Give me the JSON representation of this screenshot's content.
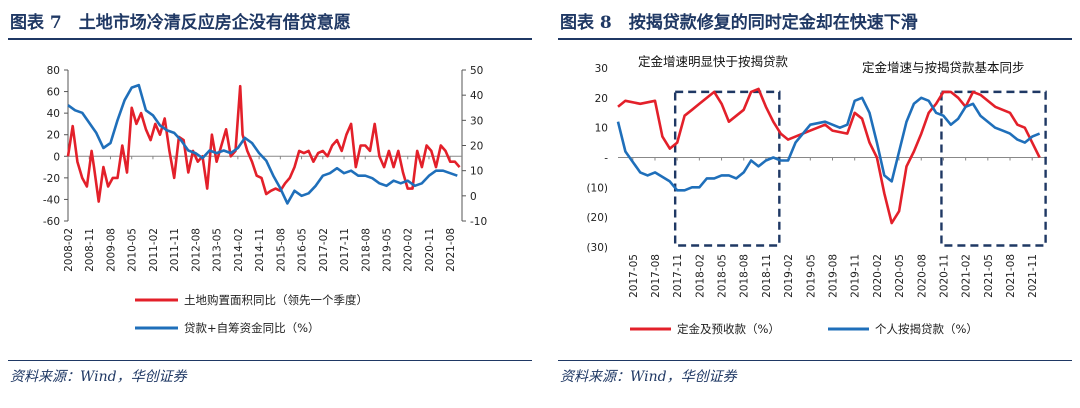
{
  "chart_data": [
    {
      "type": "line",
      "title": "图表 7　土地市场冷清反应房企没有借贷意愿",
      "source": "资料来源：Wind，华创证券",
      "x_tick_labels": [
        "2008-02",
        "2008-11",
        "2009-08",
        "2010-05",
        "2011-02",
        "2011-11",
        "2012-08",
        "2013-05",
        "2014-02",
        "2014-11",
        "2015-08",
        "2016-05",
        "2017-02",
        "2017-11",
        "2018-08",
        "2019-05",
        "2020-02",
        "2020-11",
        "2021-08"
      ],
      "x_start": "2008-02",
      "ylim_left": [
        -60,
        80
      ],
      "yticks_left": [
        -60,
        -40,
        -20,
        0,
        20,
        40,
        60,
        80
      ],
      "ylim_right": [
        -10,
        50
      ],
      "yticks_right": [
        -10,
        0,
        10,
        20,
        30,
        40,
        50
      ],
      "series": [
        {
          "name": "土地购置面积同比（领先一个季度）",
          "axis": "left",
          "color": "#e3202a",
          "x": [
            "2008-02",
            "2008-04",
            "2008-06",
            "2008-08",
            "2008-10",
            "2008-12",
            "2009-01",
            "2009-03",
            "2009-05",
            "2009-07",
            "2009-09",
            "2009-11",
            "2010-01",
            "2010-03",
            "2010-05",
            "2010-07",
            "2010-09",
            "2010-11",
            "2011-01",
            "2011-03",
            "2011-05",
            "2011-07",
            "2011-09",
            "2011-11",
            "2012-01",
            "2012-03",
            "2012-05",
            "2012-07",
            "2012-09",
            "2012-11",
            "2013-01",
            "2013-03",
            "2013-05",
            "2013-07",
            "2013-09",
            "2013-11",
            "2014-01",
            "2014-03",
            "2014-04",
            "2014-06",
            "2014-08",
            "2014-10",
            "2014-12",
            "2015-02",
            "2015-04",
            "2015-06",
            "2015-08",
            "2015-10",
            "2015-12",
            "2016-02",
            "2016-04",
            "2016-06",
            "2016-08",
            "2016-10",
            "2016-12",
            "2017-02",
            "2017-04",
            "2017-06",
            "2017-08",
            "2017-10",
            "2017-12",
            "2018-02",
            "2018-04",
            "2018-06",
            "2018-08",
            "2018-10",
            "2018-12",
            "2019-02",
            "2019-04",
            "2019-06",
            "2019-08",
            "2019-10",
            "2019-12",
            "2020-02",
            "2020-04",
            "2020-06",
            "2020-08",
            "2020-10",
            "2020-12",
            "2021-02",
            "2021-04",
            "2021-06",
            "2021-08",
            "2021-10",
            "2021-12"
          ],
          "values": [
            0,
            28,
            -5,
            -20,
            -28,
            5,
            -10,
            -42,
            -10,
            -28,
            -20,
            -20,
            10,
            -15,
            45,
            30,
            40,
            25,
            15,
            30,
            20,
            35,
            5,
            -20,
            18,
            15,
            -15,
            5,
            -5,
            0,
            -30,
            20,
            -5,
            10,
            25,
            0,
            5,
            65,
            20,
            5,
            -5,
            -18,
            -20,
            -35,
            -32,
            -30,
            -32,
            -25,
            -20,
            -10,
            5,
            3,
            5,
            -5,
            3,
            5,
            0,
            10,
            15,
            5,
            20,
            30,
            -10,
            10,
            10,
            5,
            30,
            0,
            -10,
            5,
            -10,
            5,
            -15,
            -30,
            -30,
            5,
            -10,
            10,
            5,
            -10,
            10,
            5,
            -5,
            -5,
            -10
          ]
        },
        {
          "name": "贷款+自筹资金同比（%）",
          "axis": "right",
          "color": "#1f6fba",
          "x": [
            "2008-02",
            "2008-05",
            "2008-08",
            "2008-11",
            "2009-02",
            "2009-05",
            "2009-08",
            "2009-11",
            "2010-02",
            "2010-05",
            "2010-08",
            "2010-11",
            "2011-02",
            "2011-05",
            "2011-08",
            "2011-11",
            "2012-02",
            "2012-05",
            "2012-08",
            "2012-11",
            "2013-02",
            "2013-05",
            "2013-08",
            "2013-11",
            "2014-02",
            "2014-05",
            "2014-08",
            "2014-11",
            "2015-02",
            "2015-05",
            "2015-08",
            "2015-11",
            "2016-02",
            "2016-05",
            "2016-08",
            "2016-11",
            "2017-02",
            "2017-05",
            "2017-08",
            "2017-11",
            "2018-02",
            "2018-05",
            "2018-08",
            "2018-11",
            "2019-02",
            "2019-05",
            "2019-08",
            "2019-11",
            "2020-02",
            "2020-05",
            "2020-08",
            "2020-11",
            "2021-02",
            "2021-05",
            "2021-08",
            "2021-11"
          ],
          "values": [
            36,
            34,
            33,
            29,
            25,
            19,
            21,
            30,
            38,
            43,
            44,
            34,
            32,
            28,
            26,
            25,
            22,
            18,
            17,
            15,
            18,
            17,
            18,
            17,
            19,
            23,
            21,
            17,
            14,
            8,
            3,
            -3,
            2,
            0,
            1,
            4,
            8,
            9,
            11,
            9,
            10,
            8,
            8,
            7,
            5,
            4,
            6,
            5,
            6,
            4,
            5,
            8,
            10,
            10,
            9,
            8
          ]
        }
      ],
      "legend": [
        "土地购置面积同比（领先一个季度）",
        "贷款+自筹资金同比（%）"
      ]
    },
    {
      "type": "line",
      "title": "图表 8　按揭贷款修复的同时定金却在快速下滑",
      "source": "资料来源：Wind，华创证券",
      "x_tick_labels": [
        "2017-05",
        "2017-08",
        "2017-11",
        "2018-02",
        "2018-05",
        "2018-08",
        "2018-11",
        "2019-02",
        "2019-05",
        "2019-08",
        "2019-11",
        "2020-02",
        "2020-05",
        "2020-08",
        "2020-11",
        "2021-02",
        "2021-05",
        "2021-08",
        "2021-11"
      ],
      "y_tick_labels": [
        "(30)",
        "(20)",
        "(10)",
        "-",
        "10",
        "20",
        "30"
      ],
      "ylim": [
        -30,
        30
      ],
      "series": [
        {
          "name": "定金及预收款（%）",
          "color": "#e3202a",
          "x": [
            "2017-03",
            "2017-04",
            "2017-06",
            "2017-08",
            "2017-09",
            "2017-10",
            "2017-11",
            "2017-12",
            "2018-01",
            "2018-02",
            "2018-04",
            "2018-05",
            "2018-06",
            "2018-08",
            "2018-09",
            "2018-10",
            "2018-11",
            "2018-12",
            "2019-01",
            "2019-02",
            "2019-03",
            "2019-05",
            "2019-07",
            "2019-08",
            "2019-10",
            "2019-11",
            "2019-12",
            "2020-01",
            "2020-02",
            "2020-03",
            "2020-04",
            "2020-05",
            "2020-06",
            "2020-07",
            "2020-08",
            "2020-09",
            "2020-10",
            "2020-11",
            "2020-12",
            "2021-01",
            "2021-02",
            "2021-03",
            "2021-04",
            "2021-05",
            "2021-06",
            "2021-07",
            "2021-08",
            "2021-09",
            "2021-10",
            "2021-11",
            "2021-12"
          ],
          "values": [
            17,
            19,
            18,
            19,
            7,
            3,
            5,
            14,
            16,
            18,
            22,
            18,
            12,
            16,
            22,
            23,
            17,
            12,
            8,
            6,
            7,
            9,
            11,
            9,
            8,
            15,
            13,
            5,
            0,
            -12,
            -22,
            -18,
            -3,
            2,
            8,
            15,
            18,
            22,
            22,
            20,
            17,
            22,
            21,
            19,
            17,
            16,
            15,
            11,
            10,
            5,
            0
          ]
        },
        {
          "name": "个人按揭贷款（%）",
          "color": "#1f6fba",
          "x": [
            "2017-03",
            "2017-04",
            "2017-06",
            "2017-07",
            "2017-08",
            "2017-10",
            "2017-11",
            "2017-12",
            "2018-01",
            "2018-02",
            "2018-03",
            "2018-04",
            "2018-05",
            "2018-06",
            "2018-07",
            "2018-08",
            "2018-09",
            "2018-10",
            "2018-11",
            "2018-12",
            "2019-01",
            "2019-02",
            "2019-03",
            "2019-05",
            "2019-07",
            "2019-08",
            "2019-09",
            "2019-10",
            "2019-11",
            "2019-12",
            "2020-01",
            "2020-02",
            "2020-03",
            "2020-04",
            "2020-05",
            "2020-06",
            "2020-07",
            "2020-08",
            "2020-09",
            "2020-10",
            "2020-11",
            "2020-12",
            "2021-01",
            "2021-02",
            "2021-03",
            "2021-04",
            "2021-05",
            "2021-06",
            "2021-07",
            "2021-08",
            "2021-09",
            "2021-10",
            "2021-11",
            "2021-12"
          ],
          "values": [
            12,
            2,
            -5,
            -6,
            -5,
            -8,
            -11,
            -11,
            -10,
            -10,
            -7,
            -7,
            -6,
            -6,
            -7,
            -5,
            -1,
            -3,
            -1,
            0,
            -1,
            -1,
            5,
            11,
            12,
            11,
            10,
            11,
            19,
            20,
            15,
            5,
            -6,
            -8,
            2,
            12,
            18,
            20,
            19,
            15,
            14,
            11,
            13,
            17,
            18,
            14,
            12,
            10,
            9,
            8,
            6,
            5,
            7,
            8
          ]
        }
      ],
      "annotations": [
        "定金增速明显快于按揭贷款",
        "定金增速与按揭贷款基本同步"
      ],
      "legend": [
        "定金及预收款（%）",
        "个人按揭贷款（%）"
      ]
    }
  ]
}
